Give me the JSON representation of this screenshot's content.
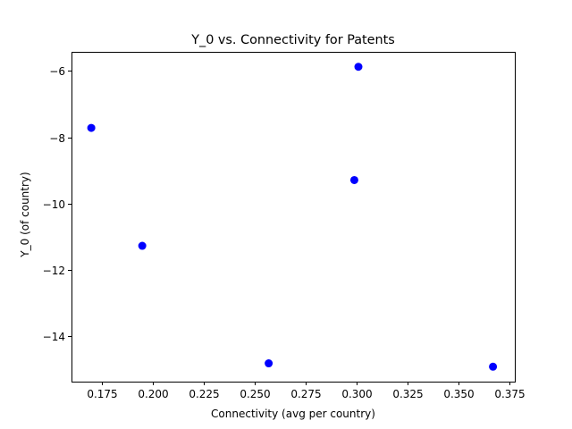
{
  "chart_data": {
    "type": "scatter",
    "title": "Y_0 vs. Connectivity for Patents",
    "xlabel": "Connectivity (avg per country)",
    "ylabel": "Y_0 (of country)",
    "xlim": [
      0.1603,
      0.3777
    ],
    "ylim": [
      -15.36,
      -5.43
    ],
    "xticks": [
      0.175,
      0.2,
      0.225,
      0.25,
      0.275,
      0.3,
      0.325,
      0.35,
      0.375
    ],
    "xtick_labels": [
      "0.175",
      "0.200",
      "0.225",
      "0.250",
      "0.275",
      "0.300",
      "0.325",
      "0.350",
      "0.375"
    ],
    "yticks": [
      -14,
      -12,
      -10,
      -8,
      -6
    ],
    "ytick_labels": [
      "−14",
      "−12",
      "−10",
      "−8",
      "−6"
    ],
    "grid": false,
    "series": [
      {
        "color": "#0000ff",
        "marker": "circle",
        "points": [
          {
            "x": 0.17,
            "y": -7.72
          },
          {
            "x": 0.195,
            "y": -11.27
          },
          {
            "x": 0.257,
            "y": -14.81
          },
          {
            "x": 0.299,
            "y": -9.29
          },
          {
            "x": 0.301,
            "y": -5.88
          },
          {
            "x": 0.367,
            "y": -14.91
          }
        ]
      }
    ]
  }
}
